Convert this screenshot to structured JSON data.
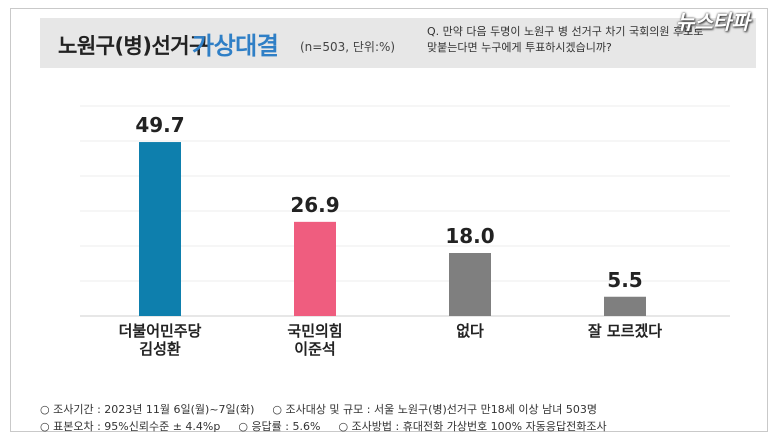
{
  "header": {
    "title_main": "노원구(병)선거구",
    "title_accent": "가상대결",
    "note": "(n=503, 단위:%)",
    "question_line1": "Q. 만약 다음 두명이 노원구 병 선거구 차기 국회의원 후보로",
    "question_line2": "맞붙는다면 누구에게 투표하시겠습니까?",
    "logo": "뉴스타파"
  },
  "chart_data": {
    "type": "bar",
    "title": "노원구(병)선거구 가상대결",
    "categories": [
      [
        "더불어민주당",
        "김성환"
      ],
      [
        "국민의힘",
        "이준석"
      ],
      [
        "없다"
      ],
      [
        "잘 모르겠다"
      ]
    ],
    "values": [
      49.7,
      26.9,
      18.0,
      5.5
    ],
    "value_labels": [
      "49.7",
      "26.9",
      "18.0",
      "5.5"
    ],
    "colors": [
      "#0e7fad",
      "#ef5d7f",
      "#7f7f7f",
      "#7f7f7f"
    ],
    "ylim": [
      0,
      60
    ],
    "xlabel": "",
    "ylabel": "",
    "grid": true
  },
  "footer": {
    "period": "○ 조사기간 : 2023년 11월 6일(월)~7일(화)",
    "target": "○ 조사대상 및 규모 : 서울 노원구(병)선거구 만18세 이상 남녀  503명",
    "error": "○ 표본오차 : 95%신뢰수준 ± 4.4%p",
    "response": "○ 응답률 : 5.6%",
    "method": "○ 조사방법 : 휴대전화 가상번호 100% 자동응답전화조사"
  }
}
